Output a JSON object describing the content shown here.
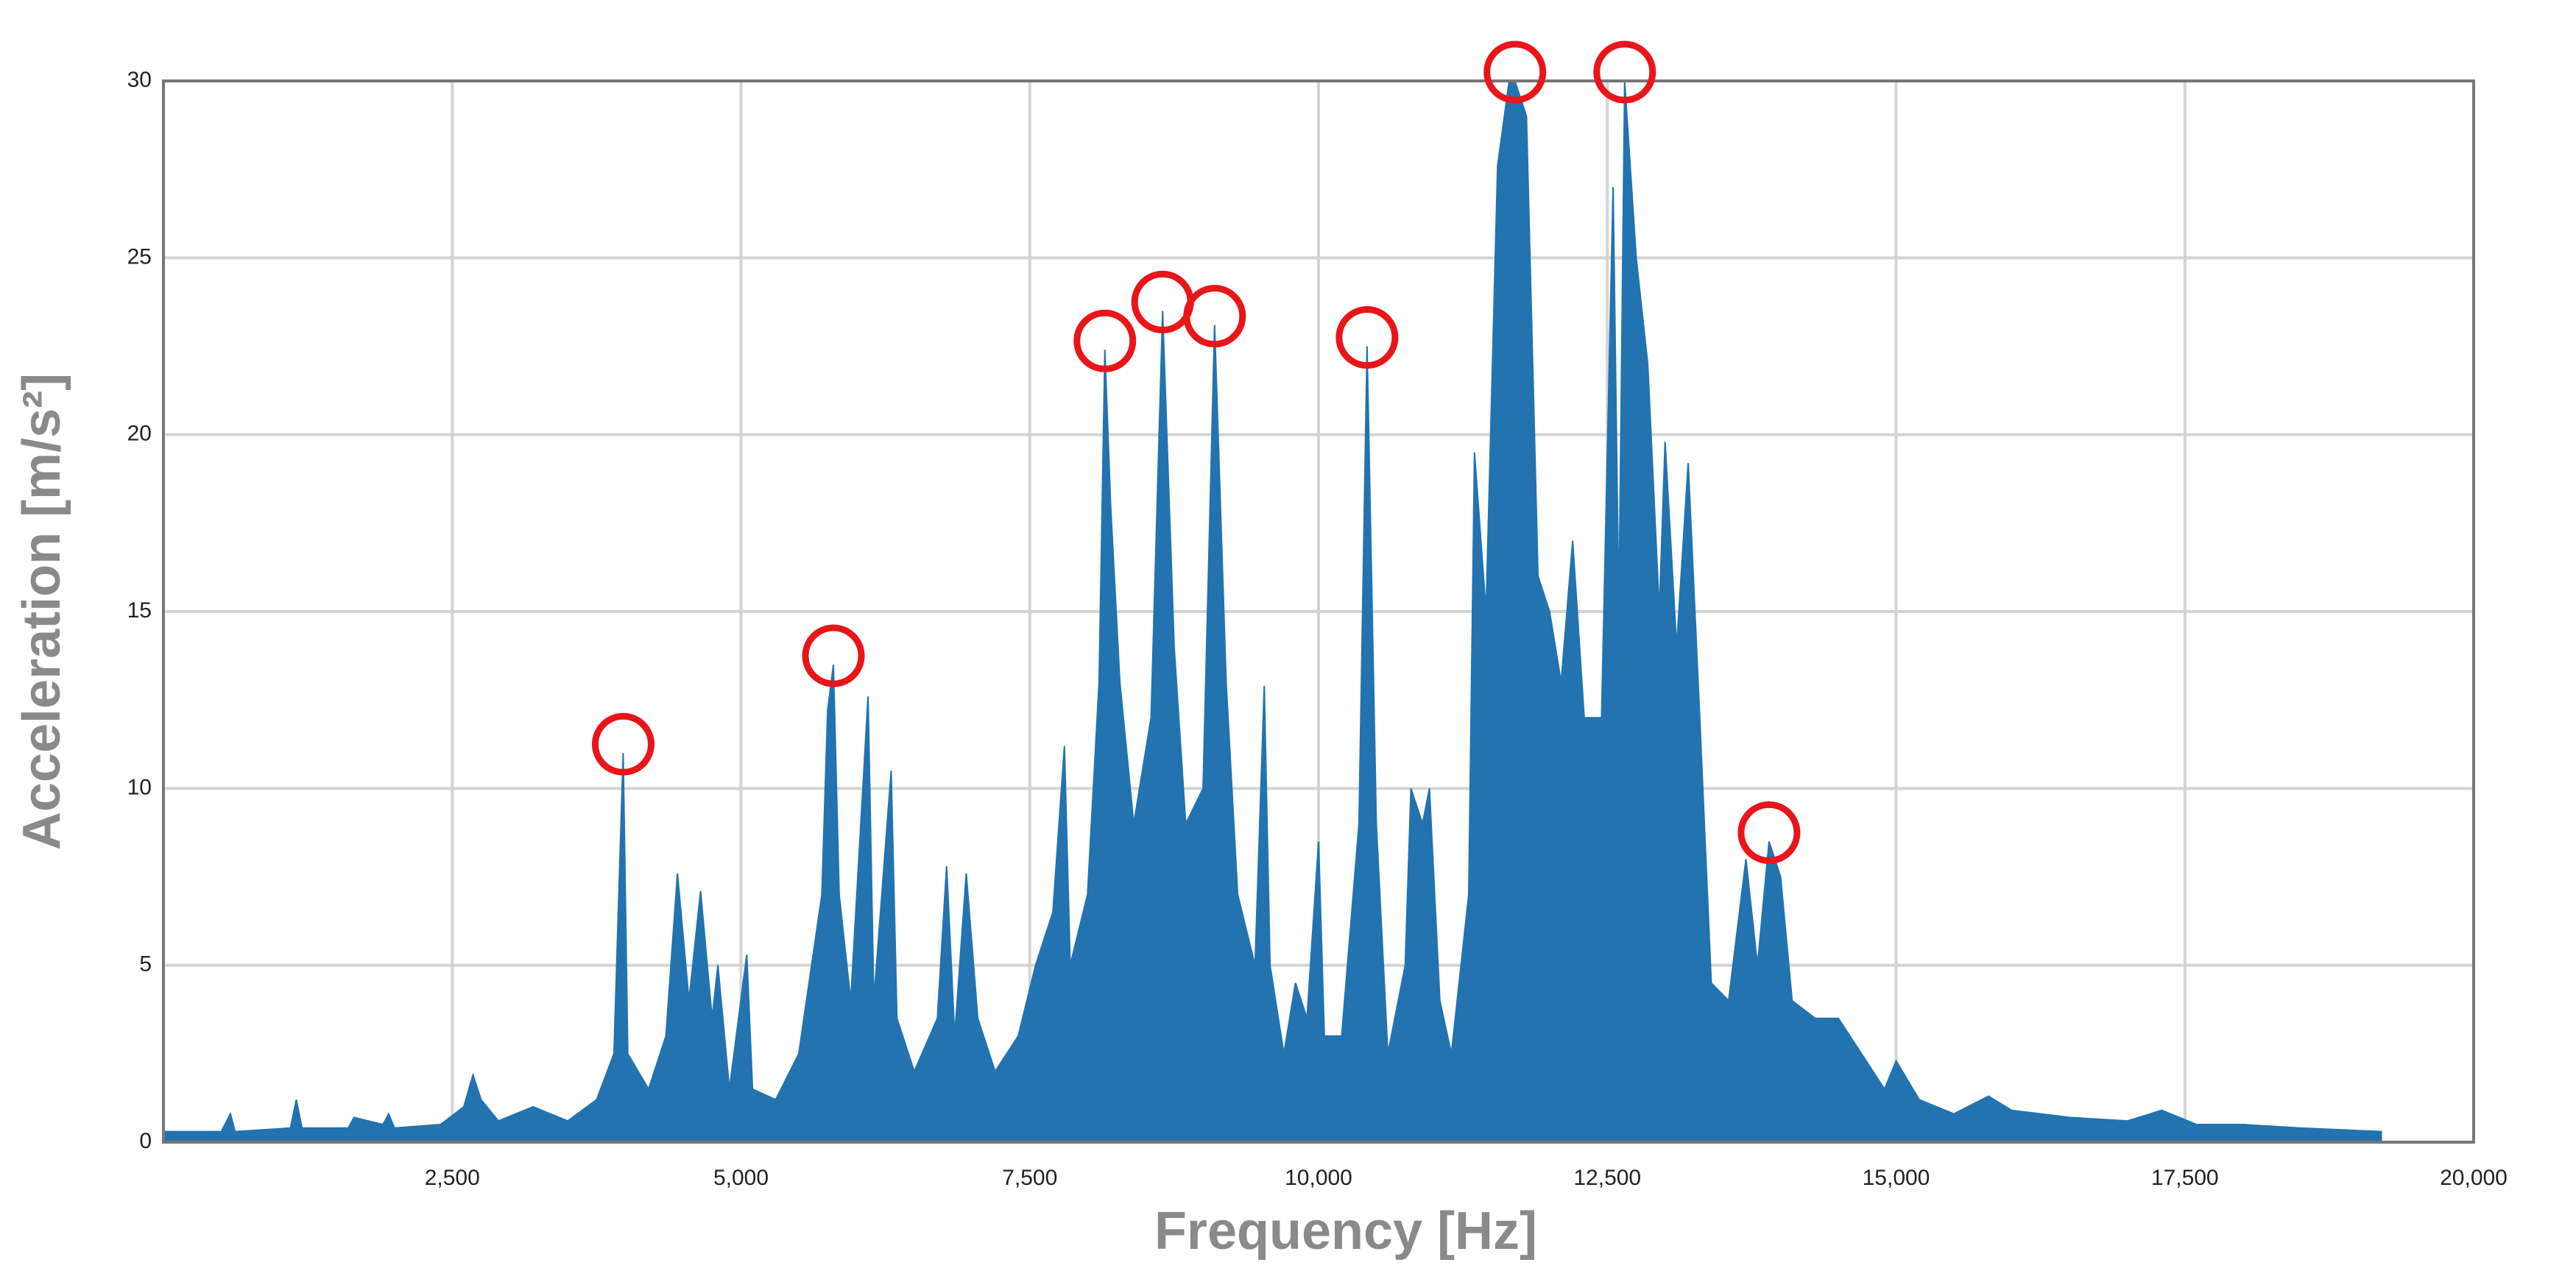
{
  "chart_data": {
    "type": "area",
    "x_label": "Frequency [Hz]",
    "y_label": "Acceleration [m/s²]",
    "color": "#2273b0",
    "grid": true,
    "xlim": [
      0,
      20000
    ],
    "ylim": [
      0,
      30
    ],
    "xticks": [
      {
        "value": 2500,
        "label": "2,500"
      },
      {
        "value": 5000,
        "label": "5,000"
      },
      {
        "value": 7500,
        "label": "7,500"
      },
      {
        "value": 10000,
        "label": "10,000"
      },
      {
        "value": 12500,
        "label": "12,500"
      },
      {
        "value": 15000,
        "label": "15,000"
      },
      {
        "value": 17500,
        "label": "17,500"
      },
      {
        "value": 20000,
        "label": "20,000"
      }
    ],
    "yticks": [
      0,
      5,
      10,
      15,
      20,
      25,
      30
    ],
    "x": [
      0,
      500,
      580,
      620,
      1100,
      1150,
      1200,
      1600,
      1650,
      1900,
      1950,
      2000,
      2400,
      2600,
      2680,
      2750,
      2900,
      3200,
      3500,
      3750,
      3900,
      3980,
      4020,
      4200,
      4350,
      4450,
      4550,
      4650,
      4750,
      4800,
      4900,
      5050,
      5100,
      5300,
      5500,
      5700,
      5750,
      5800,
      5850,
      5950,
      6100,
      6150,
      6300,
      6350,
      6500,
      6700,
      6780,
      6850,
      6950,
      7050,
      7200,
      7400,
      7550,
      7700,
      7800,
      7850,
      8000,
      8100,
      8150,
      8200,
      8280,
      8400,
      8550,
      8650,
      8750,
      8850,
      9000,
      9100,
      9200,
      9300,
      9450,
      9530,
      9580,
      9700,
      9800,
      9900,
      10000,
      10050,
      10200,
      10350,
      10420,
      10500,
      10600,
      10750,
      10800,
      10900,
      10960,
      11050,
      11150,
      11300,
      11350,
      11450,
      11550,
      11650,
      11700,
      11800,
      11900,
      12000,
      12100,
      12200,
      12300,
      12450,
      12550,
      12600,
      12650,
      12750,
      12850,
      12950,
      13000,
      13100,
      13200,
      13300,
      13400,
      13550,
      13700,
      13800,
      13900,
      14000,
      14100,
      14300,
      14500,
      14700,
      14900,
      15000,
      15200,
      15500,
      15800,
      16000,
      16500,
      17000,
      17300,
      17600,
      18000,
      18500,
      19200
    ],
    "values": [
      0.3,
      0.3,
      0.8,
      0.3,
      0.4,
      1.2,
      0.4,
      0.4,
      0.7,
      0.5,
      0.8,
      0.4,
      0.5,
      1.0,
      1.9,
      1.2,
      0.6,
      1.0,
      0.6,
      1.2,
      2.5,
      11,
      2.5,
      1.5,
      3,
      7.6,
      4,
      7.1,
      3.5,
      5,
      1.5,
      5.3,
      1.5,
      1.2,
      2.5,
      7,
      12.2,
      13.5,
      7,
      4,
      12.6,
      4,
      10.5,
      3.5,
      2,
      3.5,
      7.8,
      3,
      7.6,
      3.5,
      2,
      3,
      5,
      6.5,
      11.2,
      5,
      7,
      13,
      22.4,
      18,
      13,
      9,
      12,
      23.5,
      14,
      9,
      10,
      23.1,
      13,
      7,
      5,
      12.9,
      5,
      2.5,
      4.5,
      3.5,
      8.5,
      3,
      3,
      9,
      22.5,
      9,
      2.5,
      5,
      10,
      9,
      10,
      4,
      2.5,
      7,
      19.5,
      15,
      27.6,
      30,
      30,
      29,
      16,
      15,
      13,
      17,
      12,
      12,
      27,
      15,
      30,
      25,
      22,
      15,
      19.8,
      14,
      19.2,
      12,
      4.5,
      4,
      8,
      5,
      8.5,
      7.5,
      4,
      3.5,
      3.5,
      2.5,
      1.5,
      2.3,
      1.2,
      0.8,
      1.3,
      0.9,
      0.7,
      0.6,
      0.9,
      0.5,
      0.5,
      0.4,
      0.3
    ],
    "peaks": {
      "color": "#e8151b",
      "x": [
        3980,
        5800,
        8150,
        8650,
        9100,
        10420,
        11700,
        12650,
        13900
      ],
      "values": [
        11,
        13.5,
        22.4,
        23.5,
        23.1,
        22.5,
        30,
        30,
        8.5
      ]
    }
  }
}
